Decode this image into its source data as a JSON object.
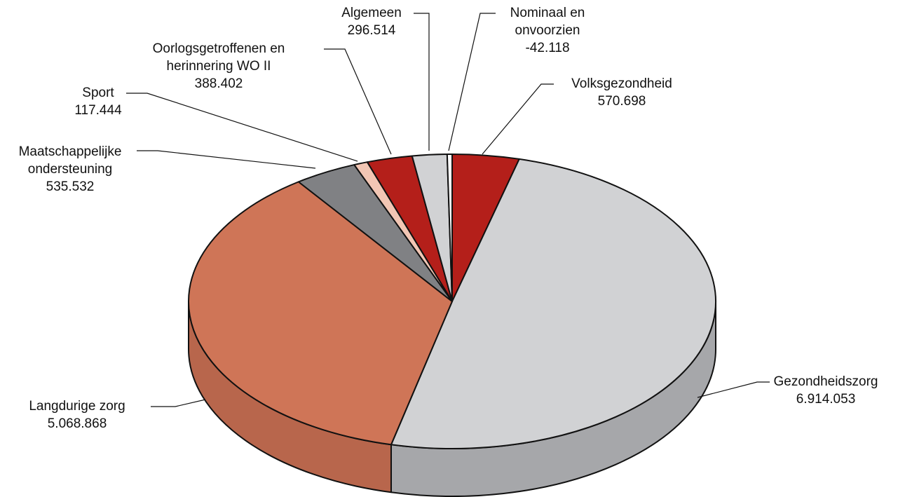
{
  "chart_data": {
    "type": "pie",
    "style": "3d",
    "title": "",
    "slices": [
      {
        "label": "Volksgezondheid",
        "value_text": "570.698",
        "value": 570698,
        "color": "#b41f1a",
        "side": "#8e1713"
      },
      {
        "label": "Gezondheidszorg",
        "value_text": "6.914.053",
        "value": 6914053,
        "color": "#d1d2d4",
        "side": "#a6a7aa"
      },
      {
        "label": "Langdurige zorg",
        "value_text": "5.068.868",
        "value": 5068868,
        "color": "#cf7557",
        "side": "#b8664c"
      },
      {
        "label": "Maatschappelijke ondersteuning",
        "label_lines": [
          "Maatschappelijke",
          "ondersteuning"
        ],
        "value_text": "535.532",
        "value": 535532,
        "color": "#808184",
        "side": "#5f6063"
      },
      {
        "label": "Sport",
        "value_text": "117.444",
        "value": 117444,
        "color": "#f2c6b4",
        "side": "#d9a896"
      },
      {
        "label": "Oorlogsgetroffenen en herinnering WO II",
        "label_lines": [
          "Oorlogsgetroffenen en",
          "herinnering WO II"
        ],
        "value_text": "388.402",
        "value": 388402,
        "color": "#b41f1a",
        "side": "#8e1713"
      },
      {
        "label": "Algemeen",
        "value_text": "296.514",
        "value": 296514,
        "color": "#d1d2d4",
        "side": "#a6a7aa"
      },
      {
        "label": "Nominaal en onvoorzien",
        "label_lines": [
          "Nominaal en",
          "onvoorzien"
        ],
        "value_text": "-42.118",
        "value": -42118,
        "color": "#ffffff",
        "side": "#dddddd"
      }
    ]
  }
}
